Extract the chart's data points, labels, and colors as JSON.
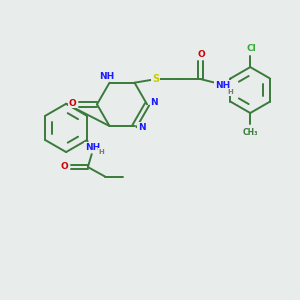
{
  "bg_color": "#e8eceb",
  "bond_color": "#3a7a3a",
  "n_color": "#1a1aff",
  "o_color": "#cc0000",
  "s_color": "#cccc00",
  "cl_color": "#33aa33",
  "h_color": "#7a7a7a",
  "line_width": 1.4,
  "font_size": 6.5,
  "fig_size": [
    3.0,
    3.0
  ],
  "dpi": 100,
  "xlim": [
    0,
    10
  ],
  "ylim": [
    0,
    10
  ]
}
